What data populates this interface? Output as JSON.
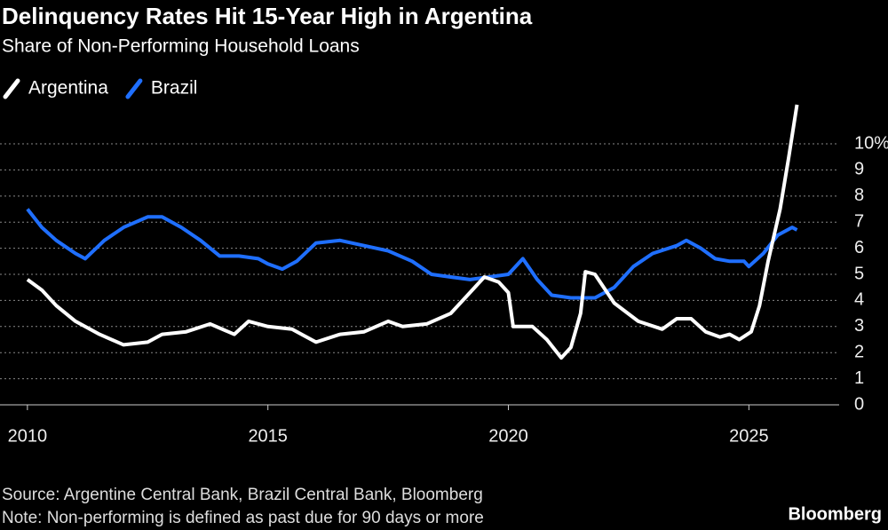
{
  "chart_data": {
    "type": "line",
    "title": "Delinquency Rates Hit 15-Year High in Argentina",
    "subtitle": "Share of Non-Performing Household Loans",
    "source": "Source: Argentine Central Bank, Brazil Central Bank, Bloomberg",
    "note": "Note: Non-performing is defined as past due for 90 days or more",
    "brand": "Bloomberg",
    "series": [
      {
        "name": "Argentina",
        "color": "#ffffff",
        "x": [
          2010.0,
          2010.3,
          2010.6,
          2011.0,
          2011.5,
          2012.0,
          2012.5,
          2012.8,
          2013.3,
          2013.8,
          2014.3,
          2014.6,
          2015.0,
          2015.5,
          2016.0,
          2016.5,
          2017.0,
          2017.5,
          2017.8,
          2018.3,
          2018.8,
          2019.2,
          2019.5,
          2019.8,
          2020.0,
          2020.1,
          2020.5,
          2020.8,
          2021.1,
          2021.3,
          2021.5,
          2021.6,
          2021.8,
          2022.2,
          2022.7,
          2023.2,
          2023.5,
          2023.8,
          2024.1,
          2024.4,
          2024.6,
          2024.8,
          2025.05,
          2025.22,
          2025.4,
          2025.65,
          2025.83,
          2026.0
        ],
        "values": [
          4.8,
          4.4,
          3.8,
          3.2,
          2.7,
          2.3,
          2.4,
          2.7,
          2.8,
          3.1,
          2.7,
          3.2,
          3.0,
          2.9,
          2.4,
          2.7,
          2.8,
          3.2,
          3.0,
          3.1,
          3.5,
          4.3,
          4.9,
          4.7,
          4.3,
          3.0,
          3.0,
          2.5,
          1.8,
          2.2,
          3.5,
          5.1,
          5.0,
          3.9,
          3.2,
          2.9,
          3.3,
          3.3,
          2.8,
          2.6,
          2.7,
          2.5,
          2.8,
          3.8,
          5.5,
          7.5,
          9.5,
          11.5
        ]
      },
      {
        "name": "Brazil",
        "color": "#1f6fff",
        "x": [
          2010.0,
          2010.3,
          2010.6,
          2011.0,
          2011.2,
          2011.6,
          2012.0,
          2012.5,
          2012.8,
          2013.2,
          2013.6,
          2014.0,
          2014.4,
          2014.8,
          2015.0,
          2015.3,
          2015.6,
          2016.0,
          2016.5,
          2017.0,
          2017.5,
          2018.0,
          2018.4,
          2018.8,
          2019.2,
          2019.6,
          2020.0,
          2020.3,
          2020.6,
          2020.9,
          2021.3,
          2021.8,
          2022.2,
          2022.6,
          2023.0,
          2023.5,
          2023.7,
          2024.0,
          2024.3,
          2024.6,
          2024.9,
          2025.0,
          2025.3,
          2025.6,
          2025.9,
          2026.0
        ],
        "values": [
          7.5,
          6.8,
          6.3,
          5.8,
          5.6,
          6.3,
          6.8,
          7.2,
          7.2,
          6.8,
          6.3,
          5.7,
          5.7,
          5.6,
          5.4,
          5.2,
          5.5,
          6.2,
          6.3,
          6.1,
          5.9,
          5.5,
          5.0,
          4.9,
          4.8,
          4.9,
          5.0,
          5.6,
          4.8,
          4.2,
          4.1,
          4.1,
          4.5,
          5.3,
          5.8,
          6.1,
          6.3,
          6.0,
          5.6,
          5.5,
          5.5,
          5.3,
          5.8,
          6.5,
          6.8,
          6.7
        ]
      }
    ],
    "xlim": [
      2009.43,
      2026.6
    ],
    "xticks": [
      2010,
      2015,
      2020,
      2025
    ],
    "ylim": [
      0,
      11.6
    ],
    "yticks": [
      0,
      1,
      2,
      3,
      4,
      5,
      6,
      7,
      8,
      9,
      {
        "value": 10,
        "label": "10%"
      }
    ],
    "grid": true
  }
}
